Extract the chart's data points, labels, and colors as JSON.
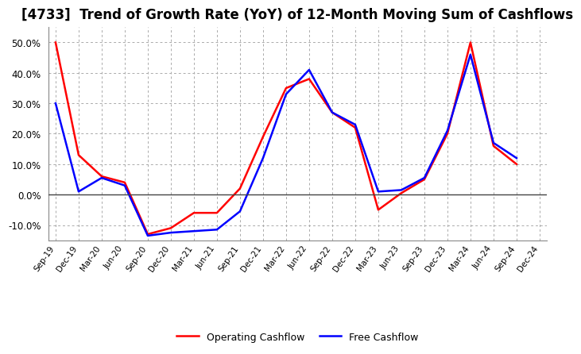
{
  "title": "[4733]  Trend of Growth Rate (YoY) of 12-Month Moving Sum of Cashflows",
  "x_labels": [
    "Sep-19",
    "Dec-19",
    "Mar-20",
    "Jun-20",
    "Sep-20",
    "Dec-20",
    "Mar-21",
    "Jun-21",
    "Sep-21",
    "Dec-21",
    "Mar-22",
    "Jun-22",
    "Sep-22",
    "Dec-22",
    "Mar-23",
    "Jun-23",
    "Sep-23",
    "Dec-23",
    "Mar-24",
    "Jun-24",
    "Sep-24",
    "Dec-24"
  ],
  "operating_cashflow": [
    50.0,
    13.0,
    6.0,
    4.0,
    -13.0,
    -11.0,
    -6.0,
    -6.0,
    2.0,
    19.0,
    35.0,
    38.0,
    27.0,
    22.0,
    -5.0,
    0.5,
    5.0,
    20.0,
    50.0,
    16.0,
    10.0,
    null
  ],
  "free_cashflow": [
    30.0,
    1.0,
    5.5,
    3.0,
    -13.5,
    -12.5,
    -12.0,
    -11.5,
    -5.5,
    12.0,
    33.0,
    41.0,
    27.0,
    23.0,
    1.0,
    1.5,
    5.5,
    21.0,
    46.0,
    17.0,
    12.0,
    null
  ],
  "ylim": [
    -15,
    55
  ],
  "yticks": [
    -10.0,
    0.0,
    10.0,
    20.0,
    30.0,
    40.0,
    50.0
  ],
  "operating_color": "#ff0000",
  "free_color": "#0000ff",
  "line_width": 1.8,
  "background_color": "#ffffff",
  "plot_bg_color": "#ffffff",
  "grid_color": "#aaaaaa",
  "legend_labels": [
    "Operating Cashflow",
    "Free Cashflow"
  ],
  "title_fontsize": 12
}
